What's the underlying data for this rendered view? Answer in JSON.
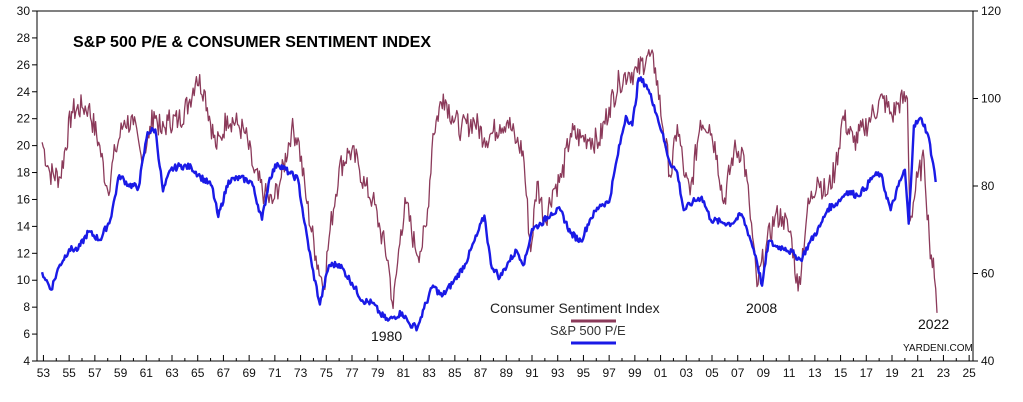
{
  "chart_data": {
    "type": "line",
    "title": "S&P 500 P/E & CONSUMER SENTIMENT INDEX",
    "credit": "YARDENI.COM",
    "x_tick_labels": [
      "53",
      "55",
      "57",
      "59",
      "61",
      "63",
      "65",
      "67",
      "69",
      "71",
      "73",
      "75",
      "77",
      "79",
      "81",
      "83",
      "85",
      "87",
      "89",
      "91",
      "93",
      "95",
      "97",
      "99",
      "01",
      "03",
      "05",
      "07",
      "09",
      "11",
      "13",
      "15",
      "17",
      "19",
      "21",
      "23",
      "25"
    ],
    "xlim": [
      1952.5,
      2025.3
    ],
    "y_left": {
      "ylim": [
        4,
        30
      ],
      "ticks": [
        "4",
        "6",
        "8",
        "10",
        "12",
        "14",
        "16",
        "18",
        "20",
        "22",
        "24",
        "26",
        "28",
        "30"
      ]
    },
    "y_right": {
      "ylim": [
        40,
        120
      ],
      "ticks": [
        "40",
        "60",
        "80",
        "100",
        "120"
      ]
    },
    "grid": false,
    "legend": {
      "position": "bottom-center"
    },
    "annotations": [
      {
        "label": "1980",
        "x": 1980
      },
      {
        "label": "2008",
        "x": 2008
      },
      {
        "label": "2022",
        "x": 2022
      }
    ],
    "series": [
      {
        "name": "Consumer Sentiment Index",
        "axis": "right",
        "color": "#8b3a5a",
        "points": [
          [
            1952.9,
            90
          ],
          [
            1953.5,
            83
          ],
          [
            1954.3,
            82
          ],
          [
            1955.2,
            97
          ],
          [
            1956,
            98
          ],
          [
            1956.5,
            98
          ],
          [
            1957.3,
            90
          ],
          [
            1958,
            79
          ],
          [
            1958.6,
            88
          ],
          [
            1959.3,
            95
          ],
          [
            1960,
            94
          ],
          [
            1960.6,
            87
          ],
          [
            1961.2,
            91
          ],
          [
            1961.6,
            97
          ],
          [
            1962.2,
            92
          ],
          [
            1962.7,
            95
          ],
          [
            1963.5,
            95
          ],
          [
            1964.3,
            99
          ],
          [
            1964.9,
            105
          ],
          [
            1965.5,
            102
          ],
          [
            1966.4,
            89
          ],
          [
            1966.8,
            91
          ],
          [
            1967.3,
            96
          ],
          [
            1968.1,
            94
          ],
          [
            1968.7,
            92
          ],
          [
            1969.4,
            83
          ],
          [
            1970.2,
            78
          ],
          [
            1970.8,
            76
          ],
          [
            1971.5,
            82
          ],
          [
            1972.3,
            93
          ],
          [
            1972.8,
            91
          ],
          [
            1973.5,
            76
          ],
          [
            1974.2,
            64
          ],
          [
            1974.8,
            57
          ],
          [
            1975.3,
            70
          ],
          [
            1976,
            84
          ],
          [
            1976.8,
            88
          ],
          [
            1977.5,
            85
          ],
          [
            1978,
            80
          ],
          [
            1978.6,
            77
          ],
          [
            1979.2,
            70
          ],
          [
            1979.8,
            63
          ],
          [
            1980.2,
            52
          ],
          [
            1980.8,
            70
          ],
          [
            1981.2,
            76
          ],
          [
            1981.9,
            66
          ],
          [
            1982.3,
            65
          ],
          [
            1982.8,
            71
          ],
          [
            1983.3,
            92
          ],
          [
            1984.1,
            101
          ],
          [
            1984.8,
            96
          ],
          [
            1985.5,
            93
          ],
          [
            1986.5,
            95
          ],
          [
            1987.3,
            91
          ],
          [
            1987.9,
            92
          ],
          [
            1988.5,
            94
          ],
          [
            1989.1,
            95
          ],
          [
            1989.8,
            90
          ],
          [
            1990.3,
            88
          ],
          [
            1990.9,
            65
          ],
          [
            1991.4,
            81
          ],
          [
            1992,
            72
          ],
          [
            1992.6,
            79
          ],
          [
            1993.3,
            82
          ],
          [
            1994,
            92
          ],
          [
            1994.8,
            91
          ],
          [
            1995.5,
            91
          ],
          [
            1996.2,
            90
          ],
          [
            1997,
            98
          ],
          [
            1997.8,
            104
          ],
          [
            1998.5,
            106
          ],
          [
            1999.2,
            106
          ],
          [
            2000,
            110
          ],
          [
            2000.6,
            107
          ],
          [
            2001.2,
            93
          ],
          [
            2001.8,
            82
          ],
          [
            2002.3,
            94
          ],
          [
            2002.9,
            82
          ],
          [
            2003.3,
            78
          ],
          [
            2004.1,
            95
          ],
          [
            2004.8,
            94
          ],
          [
            2005.4,
            87
          ],
          [
            2005.9,
            76
          ],
          [
            2006.7,
            88
          ],
          [
            2007.4,
            88
          ],
          [
            2007.9,
            76
          ],
          [
            2008.5,
            57
          ],
          [
            2009.2,
            66
          ],
          [
            2009.9,
            73
          ],
          [
            2010.5,
            73
          ],
          [
            2011.2,
            68
          ],
          [
            2011.7,
            56
          ],
          [
            2012.4,
            74
          ],
          [
            2013.2,
            82
          ],
          [
            2013.9,
            78
          ],
          [
            2014.6,
            84
          ],
          [
            2015.2,
            96
          ],
          [
            2016,
            90
          ],
          [
            2016.8,
            93
          ],
          [
            2017.4,
            96
          ],
          [
            2018.3,
            100
          ],
          [
            2019,
            96
          ],
          [
            2019.5,
            99
          ],
          [
            2020.2,
            100
          ],
          [
            2020.4,
            72
          ],
          [
            2021,
            82
          ],
          [
            2021.5,
            86
          ],
          [
            2021.9,
            68
          ],
          [
            2022.3,
            59
          ],
          [
            2022.5,
            51
          ]
        ]
      },
      {
        "name": "S&P 500 P/E",
        "axis": "left",
        "color": "#1a1ae6",
        "points": [
          [
            1952.9,
            10.6
          ],
          [
            1953.6,
            9.3
          ],
          [
            1954.2,
            11
          ],
          [
            1955,
            12.3
          ],
          [
            1955.7,
            12.3
          ],
          [
            1956.5,
            13.6
          ],
          [
            1957.4,
            13
          ],
          [
            1958.2,
            14.5
          ],
          [
            1958.9,
            17.8
          ],
          [
            1959.6,
            17.1
          ],
          [
            1960.4,
            16.9
          ],
          [
            1961.1,
            21
          ],
          [
            1961.7,
            21.2
          ],
          [
            1962.3,
            16.6
          ],
          [
            1962.9,
            18.2
          ],
          [
            1963.6,
            18.5
          ],
          [
            1964.5,
            18.4
          ],
          [
            1965.2,
            17.7
          ],
          [
            1966.1,
            17
          ],
          [
            1966.6,
            14.7
          ],
          [
            1967.4,
            17.4
          ],
          [
            1968.3,
            17.6
          ],
          [
            1969.2,
            17.3
          ],
          [
            1970,
            14.5
          ],
          [
            1970.6,
            17.6
          ],
          [
            1971.2,
            18.7
          ],
          [
            1972.1,
            18
          ],
          [
            1972.8,
            17.5
          ],
          [
            1973.3,
            14.3
          ],
          [
            1973.9,
            11
          ],
          [
            1974.5,
            8.2
          ],
          [
            1975.2,
            11.1
          ],
          [
            1976,
            11.2
          ],
          [
            1977,
            9.8
          ],
          [
            1977.8,
            8.5
          ],
          [
            1978.6,
            8.3
          ],
          [
            1979.2,
            7.5
          ],
          [
            1979.8,
            7
          ],
          [
            1980.3,
            7.3
          ],
          [
            1980.9,
            7.6
          ],
          [
            1981.5,
            6.7
          ],
          [
            1982.1,
            6.5
          ],
          [
            1982.6,
            7.9
          ],
          [
            1983.3,
            9.6
          ],
          [
            1984,
            8.8
          ],
          [
            1984.9,
            9.9
          ],
          [
            1985.8,
            11.2
          ],
          [
            1986.7,
            13.3
          ],
          [
            1987.3,
            14.8
          ],
          [
            1987.8,
            11.2
          ],
          [
            1988.5,
            10.2
          ],
          [
            1989.2,
            11.4
          ],
          [
            1989.8,
            12.2
          ],
          [
            1990.4,
            11.2
          ],
          [
            1991,
            13.8
          ],
          [
            1991.7,
            14.2
          ],
          [
            1992.5,
            15
          ],
          [
            1993.2,
            15.2
          ],
          [
            1994,
            13.5
          ],
          [
            1994.8,
            12.9
          ],
          [
            1995.5,
            14.5
          ],
          [
            1996.3,
            15.6
          ],
          [
            1997,
            15.8
          ],
          [
            1997.6,
            19
          ],
          [
            1998.3,
            22.2
          ],
          [
            1998.8,
            21.5
          ],
          [
            1999.3,
            25
          ],
          [
            1999.9,
            24.5
          ],
          [
            2000.5,
            23
          ],
          [
            2001.1,
            21
          ],
          [
            2001.7,
            18.8
          ],
          [
            2002.3,
            18
          ],
          [
            2002.8,
            15.2
          ],
          [
            2003.5,
            15.8
          ],
          [
            2004.2,
            16.2
          ],
          [
            2004.9,
            14.5
          ],
          [
            2005.8,
            14.3
          ],
          [
            2006.5,
            14.2
          ],
          [
            2007.3,
            14.9
          ],
          [
            2007.9,
            13.3
          ],
          [
            2008.4,
            11.8
          ],
          [
            2008.9,
            9.6
          ],
          [
            2009.4,
            12.9
          ],
          [
            2010,
            12.5
          ],
          [
            2010.7,
            12.4
          ],
          [
            2011.4,
            11.9
          ],
          [
            2011.9,
            11.5
          ],
          [
            2012.6,
            12.8
          ],
          [
            2013.4,
            14
          ],
          [
            2014,
            15.3
          ],
          [
            2014.8,
            15.8
          ],
          [
            2015.5,
            16.6
          ],
          [
            2016.3,
            16.3
          ],
          [
            2016.9,
            16.8
          ],
          [
            2017.5,
            17.7
          ],
          [
            2018.1,
            17.9
          ],
          [
            2018.9,
            15.2
          ],
          [
            2019.5,
            17
          ],
          [
            2020,
            18.2
          ],
          [
            2020.3,
            14.2
          ],
          [
            2020.7,
            21.5
          ],
          [
            2021.3,
            22
          ],
          [
            2021.8,
            20.8
          ],
          [
            2022.2,
            18.7
          ],
          [
            2022.4,
            17.3
          ]
        ]
      }
    ]
  }
}
